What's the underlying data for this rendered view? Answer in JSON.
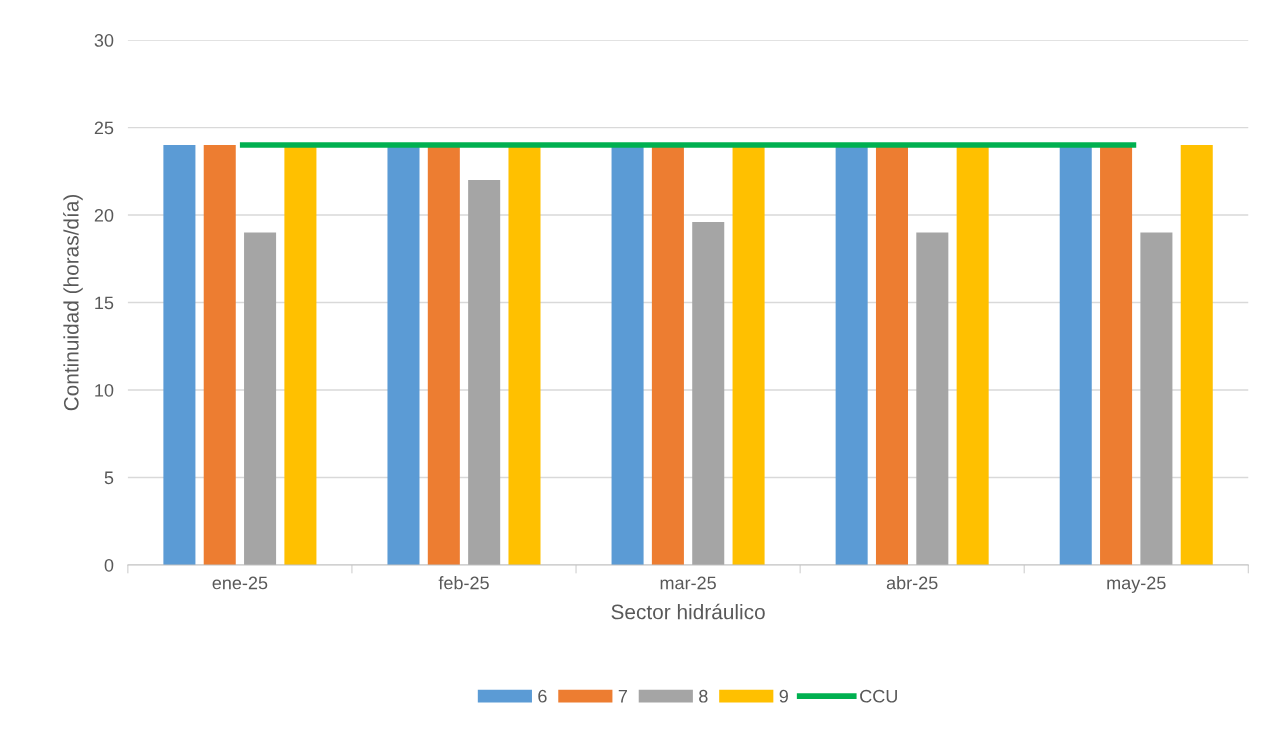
{
  "chart_data": {
    "type": "bar",
    "xlabel": "Sector hidráulico",
    "ylabel": "Continuidad (horas/día)",
    "categories": [
      "ene-25",
      "feb-25",
      "mar-25",
      "abr-25",
      "may-25"
    ],
    "series": [
      {
        "name": "6",
        "color": "#5b9bd5",
        "values": [
          24,
          24,
          24,
          24,
          24
        ]
      },
      {
        "name": "7",
        "color": "#ed7d31",
        "values": [
          24,
          24,
          24,
          24,
          24
        ]
      },
      {
        "name": "8",
        "color": "#a5a5a5",
        "values": [
          19,
          22,
          19.6,
          19,
          19
        ]
      },
      {
        "name": "9",
        "color": "#ffc000",
        "values": [
          24,
          24,
          24,
          24,
          24
        ]
      },
      {
        "name": "CCU",
        "type": "line",
        "color": "#00b050",
        "values": [
          24,
          24,
          24,
          24,
          24
        ]
      }
    ],
    "ylim": [
      0,
      30
    ],
    "yticks": [
      0,
      5,
      10,
      15,
      20,
      25,
      30
    ],
    "grid": "y",
    "legend": "bottom"
  }
}
